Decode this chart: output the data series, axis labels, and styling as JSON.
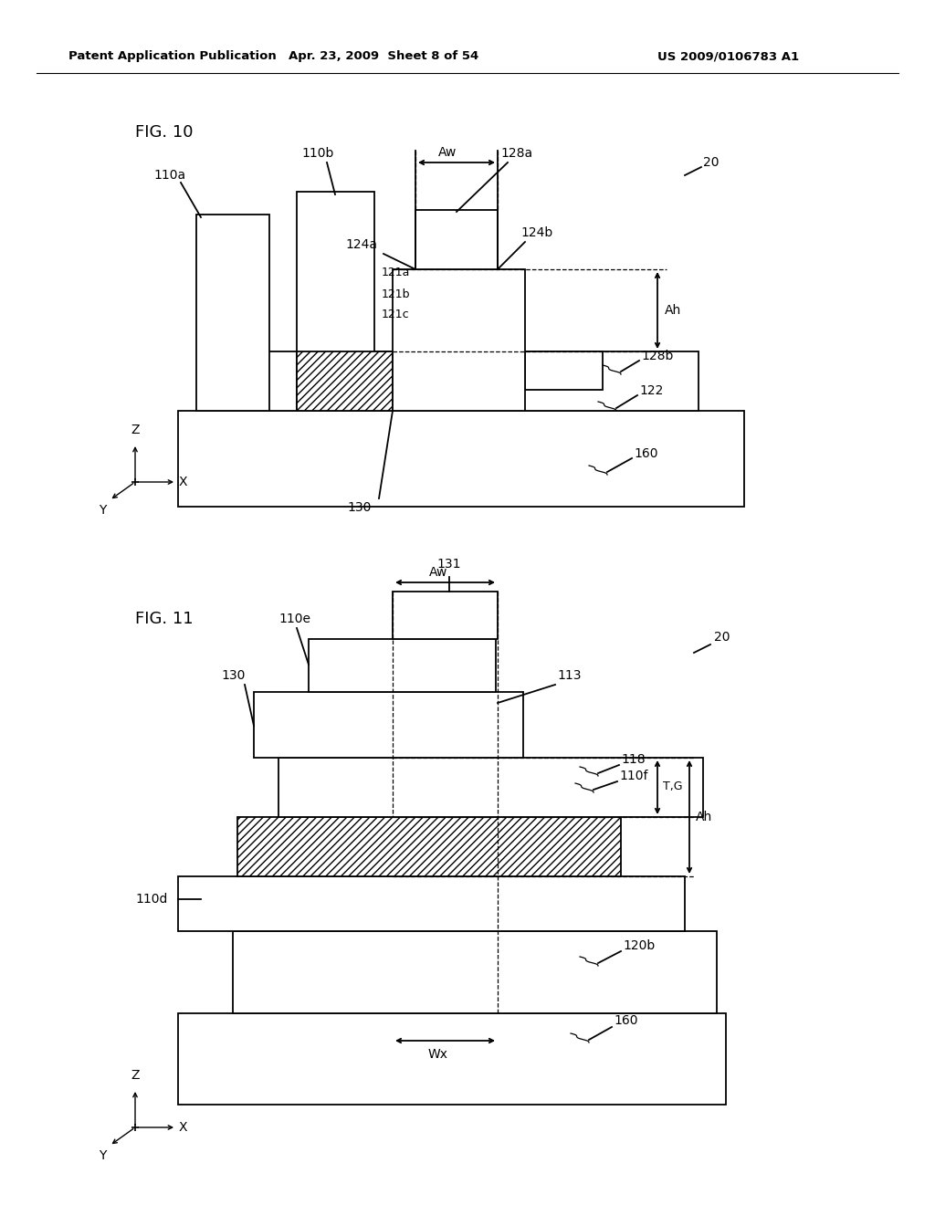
{
  "header_left": "Patent Application Publication",
  "header_mid": "Apr. 23, 2009  Sheet 8 of 54",
  "header_right": "US 2009/0106783 A1",
  "fig10_label": "FIG. 10",
  "fig11_label": "FIG. 11",
  "bg_color": "#ffffff",
  "line_color": "#000000"
}
